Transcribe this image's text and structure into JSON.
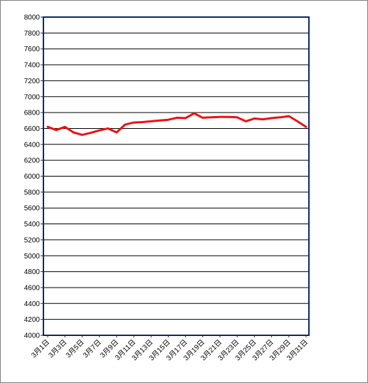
{
  "chart_data": {
    "type": "line",
    "title": "",
    "xlabel": "",
    "ylabel": "",
    "ylim": [
      4000,
      8000
    ],
    "yticks": [
      4000,
      4200,
      4400,
      4600,
      4800,
      5000,
      5200,
      5400,
      5600,
      5800,
      6000,
      6200,
      6400,
      6600,
      6800,
      7000,
      7200,
      7400,
      7600,
      7800,
      8000
    ],
    "grid": true,
    "legend": "none",
    "colors": {
      "line": "#ee1111",
      "axis_frame": "#0b2a66",
      "grid": "#000000"
    },
    "x": [
      "3月1日",
      "3月2日",
      "3月3日",
      "3月4日",
      "3月5日",
      "3月6日",
      "3月7日",
      "3月8日",
      "3月9日",
      "3月10日",
      "3月11日",
      "3月12日",
      "3月13日",
      "3月14日",
      "3月15日",
      "3月16日",
      "3月17日",
      "3月18日",
      "3月19日",
      "3月20日",
      "3月21日",
      "3月22日",
      "3月23日",
      "3月24日",
      "3月25日",
      "3月26日",
      "3月27日",
      "3月28日",
      "3月29日",
      "3月30日",
      "3月31日"
    ],
    "xtick_labels": [
      "3月1日",
      "3月3日",
      "3月5日",
      "3月7日",
      "3月9日",
      "3月11日",
      "3月13日",
      "3月15日",
      "3月17日",
      "3月19日",
      "3月21日",
      "3月23日",
      "3月25日",
      "3月27日",
      "3月29日",
      "3月31日"
    ],
    "series": [
      {
        "values": [
          6620,
          6580,
          6620,
          6550,
          6520,
          6545,
          6575,
          6600,
          6550,
          6650,
          6675,
          6680,
          6690,
          6700,
          6710,
          6735,
          6730,
          6790,
          6735,
          6740,
          6745,
          6745,
          6740,
          6690,
          6725,
          6715,
          6730,
          6740,
          6755,
          6690,
          6620
        ]
      }
    ]
  }
}
